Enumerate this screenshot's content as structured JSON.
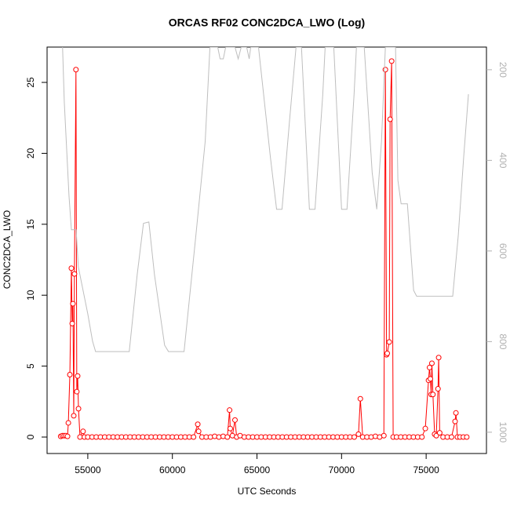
{
  "chart_data": {
    "type": "line",
    "title": "ORCAS RF02 CONC2DCA_LWO (Log)",
    "x_label": "UTC Seconds",
    "y_label": "CONC2DCA_LWO",
    "xlim": [
      52593,
      78565
    ],
    "ylim": [
      -1.16,
      27.49
    ],
    "y2lim": [
      1047,
      150
    ],
    "xticks": [
      55000,
      60000,
      65000,
      70000,
      75000
    ],
    "yticks": [
      0,
      5,
      10,
      15,
      20,
      25
    ],
    "y2ticks": [
      200,
      400,
      600,
      800,
      1000
    ],
    "series": [
      {
        "color": "#ff0000",
        "marker": "circle",
        "x": [
          53400,
          53500,
          53600,
          53700,
          53800,
          53850,
          53940,
          54030,
          54080,
          54120,
          54170,
          54210,
          54300,
          54350,
          54400,
          54450,
          54540,
          54720,
          54800,
          55000,
          55250,
          55500,
          55750,
          56000,
          56250,
          56500,
          56750,
          57000,
          57250,
          57500,
          57750,
          58000,
          58250,
          58500,
          58750,
          59000,
          59250,
          59500,
          59750,
          60000,
          60250,
          60500,
          60750,
          61000,
          61250,
          61500,
          61550,
          61750,
          62000,
          62250,
          62500,
          62750,
          63000,
          63250,
          63380,
          63420,
          63550,
          63700,
          63800,
          64000,
          64250,
          64500,
          64750,
          65000,
          65250,
          65500,
          65750,
          66000,
          66250,
          66500,
          66750,
          67000,
          67250,
          67500,
          67750,
          68000,
          68250,
          68500,
          68750,
          69000,
          69250,
          69500,
          69750,
          70000,
          70250,
          70500,
          70750,
          71000,
          71110,
          71250,
          71500,
          71750,
          72000,
          72250,
          72500,
          72590,
          72660,
          72700,
          72820,
          72870,
          72960,
          73050,
          73250,
          73500,
          73750,
          74000,
          74250,
          74500,
          74750,
          74950,
          75140,
          75200,
          75250,
          75300,
          75340,
          75400,
          75500,
          75600,
          75700,
          75740,
          75800,
          76000,
          76250,
          76500,
          76710,
          76760,
          76850,
          77000,
          77200,
          77400
        ],
        "values": [
          0.05,
          0.1,
          0.1,
          0.1,
          0.05,
          1.0,
          4.4,
          11.9,
          8.0,
          9.4,
          1.5,
          11.5,
          25.9,
          3.2,
          4.3,
          2.0,
          0,
          0.4,
          0,
          0,
          0,
          0,
          0,
          0,
          0,
          0,
          0,
          0,
          0,
          0,
          0,
          0,
          0,
          0,
          0,
          0,
          0,
          0,
          0,
          0,
          0,
          0,
          0,
          0,
          0,
          0.9,
          0.4,
          0,
          0,
          0,
          0.05,
          0,
          0.05,
          0,
          1.9,
          0.6,
          0.1,
          1.2,
          0,
          0.1,
          0,
          0,
          0,
          0,
          0,
          0,
          0,
          0,
          0,
          0,
          0,
          0,
          0,
          0,
          0,
          0,
          0,
          0,
          0,
          0,
          0,
          0,
          0,
          0,
          0,
          0,
          0,
          0.2,
          2.7,
          0,
          0,
          0,
          0.05,
          0,
          0.1,
          25.9,
          5.8,
          5.9,
          6.7,
          22.4,
          26.5,
          0,
          0,
          0,
          0,
          0,
          0,
          0,
          0,
          0.6,
          4.0,
          4.9,
          4.1,
          3.0,
          5.2,
          3.0,
          0.2,
          0.1,
          3.4,
          5.6,
          0.3,
          0,
          0,
          0,
          1.1,
          1.7,
          0,
          0,
          0,
          0
        ]
      },
      {
        "color": "#bebebe",
        "axis": "y2",
        "x": [
          53500,
          53610,
          53890,
          54030,
          54310,
          54440,
          55000,
          55280,
          55460,
          57450,
          57920,
          58290,
          58610,
          58940,
          59540,
          59770,
          60690,
          61390,
          61940,
          62220,
          62680,
          62820,
          63010,
          63150,
          63700,
          63890,
          64070,
          64390,
          64540,
          64630,
          65090,
          65790,
          66160,
          66480,
          66940,
          67310,
          67630,
          68100,
          68430,
          68890,
          69030,
          69540,
          70000,
          70320,
          70740,
          70880,
          71340,
          71810,
          72080,
          72360,
          72590,
          73190,
          73330,
          73520,
          73890,
          74260,
          74440,
          76570,
          76900,
          77220,
          77500
        ],
        "values": [
          140,
          271,
          479,
          553,
          553,
          635,
          739,
          799,
          822,
          822,
          652,
          539,
          536,
          652,
          808,
          822,
          822,
          565,
          358,
          150,
          150,
          176,
          176,
          150,
          150,
          176,
          150,
          150,
          176,
          150,
          150,
          392,
          508,
          508,
          306,
          150,
          150,
          508,
          508,
          254,
          150,
          150,
          508,
          508,
          254,
          150,
          150,
          427,
          508,
          358,
          150,
          150,
          444,
          496,
          496,
          687,
          700,
          700,
          565,
          392,
          254
        ]
      }
    ]
  }
}
